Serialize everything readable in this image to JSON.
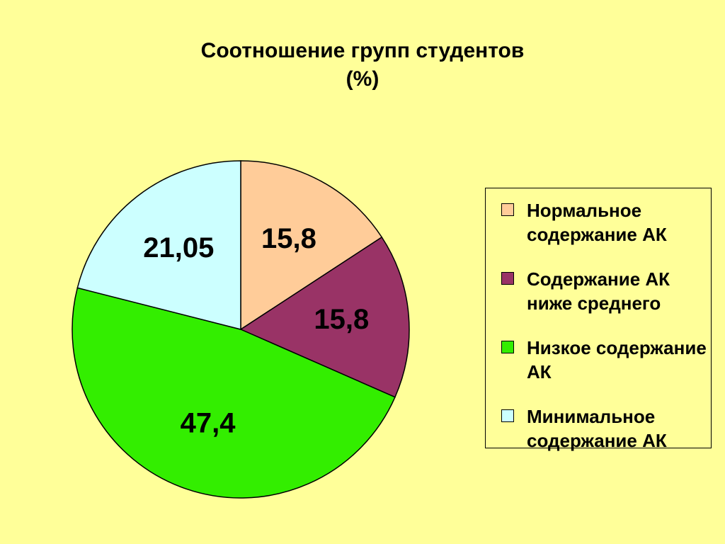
{
  "chart_data": {
    "type": "pie",
    "title": "Соотношение групп студентов\n(%)",
    "categories": [
      "Нормальное содержание АК",
      "Содержание АК ниже среднего",
      "Низкое содержание АК",
      "Минимальное содержание АК"
    ],
    "values": [
      15.8,
      15.8,
      47.4,
      21.05
    ],
    "value_labels": [
      "15,8",
      "15,8",
      "47,4",
      "21,05"
    ],
    "colors": [
      "#FFCC99",
      "#993366",
      "#33EE00",
      "#CCFFFF"
    ],
    "legend": "right"
  }
}
